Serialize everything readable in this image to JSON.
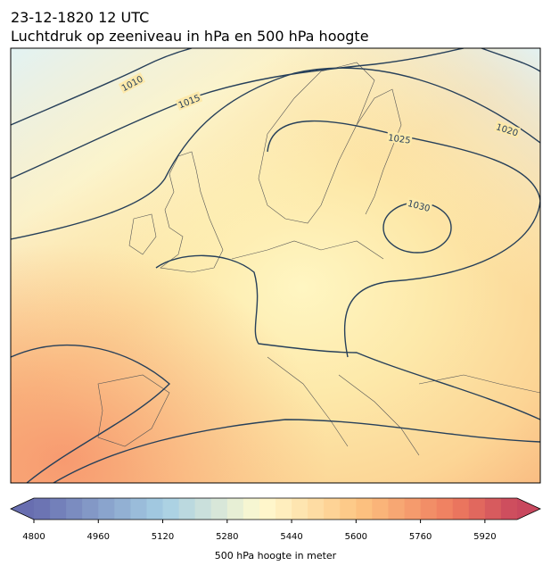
{
  "header": {
    "title": "23-12-1820 12 UTC",
    "subtitle": "Luchtdruk op zeeniveau in hPa en 500 hPa hoogte"
  },
  "map": {
    "isobar_labels": [
      1010,
      1015,
      1020,
      1025,
      1030
    ]
  },
  "colorbar": {
    "label": "500 hPa hoogte in meter",
    "lim": [
      4800,
      6000
    ],
    "ticks": [
      4800,
      4960,
      5120,
      5280,
      5440,
      5600,
      5760,
      5920
    ]
  }
}
